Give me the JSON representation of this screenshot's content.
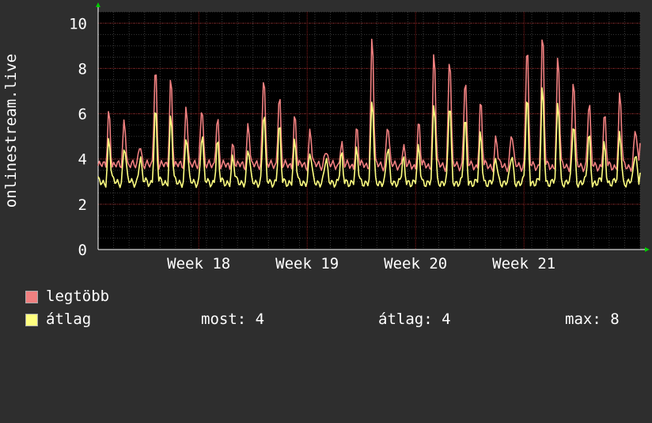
{
  "chart_data": {
    "type": "line",
    "ylabel": "onlinestream.live",
    "ylim": [
      0,
      10.5
    ],
    "yticks": [
      0,
      2,
      4,
      6,
      8,
      10
    ],
    "x_range_days": [
      0,
      35
    ],
    "xticks": [
      {
        "label": "Week 18",
        "day": 6.5
      },
      {
        "label": "Week 19",
        "day": 13.5
      },
      {
        "label": "Week 20",
        "day": 20.5
      },
      {
        "label": "Week 21",
        "day": 27.5
      }
    ],
    "grid": true,
    "series": [
      {
        "name": "legtöbb",
        "color": "#f08080",
        "daily_peak": [
          6.2,
          5.9,
          4.9,
          8.3,
          7.7,
          6.5,
          6.6,
          6.0,
          4.7,
          5.7,
          8.0,
          7.0,
          6.0,
          5.4,
          4.6,
          4.8,
          5.4,
          9.6,
          5.7,
          4.6,
          5.6,
          8.8,
          8.7,
          7.6,
          6.5,
          4.9,
          5.2,
          9.1,
          9.5,
          8.5,
          7.6,
          6.5,
          5.8,
          6.8,
          5.3
        ],
        "baseline": 3.7,
        "last": 4.7
      },
      {
        "name": "átlag",
        "color": "#ffff80",
        "daily_peak": [
          4.8,
          4.6,
          4.0,
          6.1,
          5.8,
          5.0,
          5.0,
          4.6,
          3.9,
          4.4,
          6.0,
          5.3,
          4.6,
          4.2,
          3.9,
          4.0,
          4.2,
          6.6,
          4.4,
          3.8,
          4.3,
          6.4,
          6.4,
          5.6,
          4.9,
          3.9,
          4.1,
          6.6,
          7.0,
          6.5,
          5.6,
          5.0,
          4.5,
          5.2,
          4.3
        ],
        "baseline": 3.0,
        "last": 3.4
      }
    ],
    "legend": "bottom-left"
  },
  "legend": {
    "max_label": "legtöbb",
    "avg_label": "átlag",
    "stats": {
      "now": "most: 4",
      "avg": "átlag: 4",
      "max": "max: 8"
    }
  },
  "colors": {
    "background": "#2e2e2e",
    "plot_background": "#000000",
    "grid_major": "#8b1a1a",
    "grid_minor": "#3a3a3a",
    "axis_arrow": "#00cc00"
  }
}
